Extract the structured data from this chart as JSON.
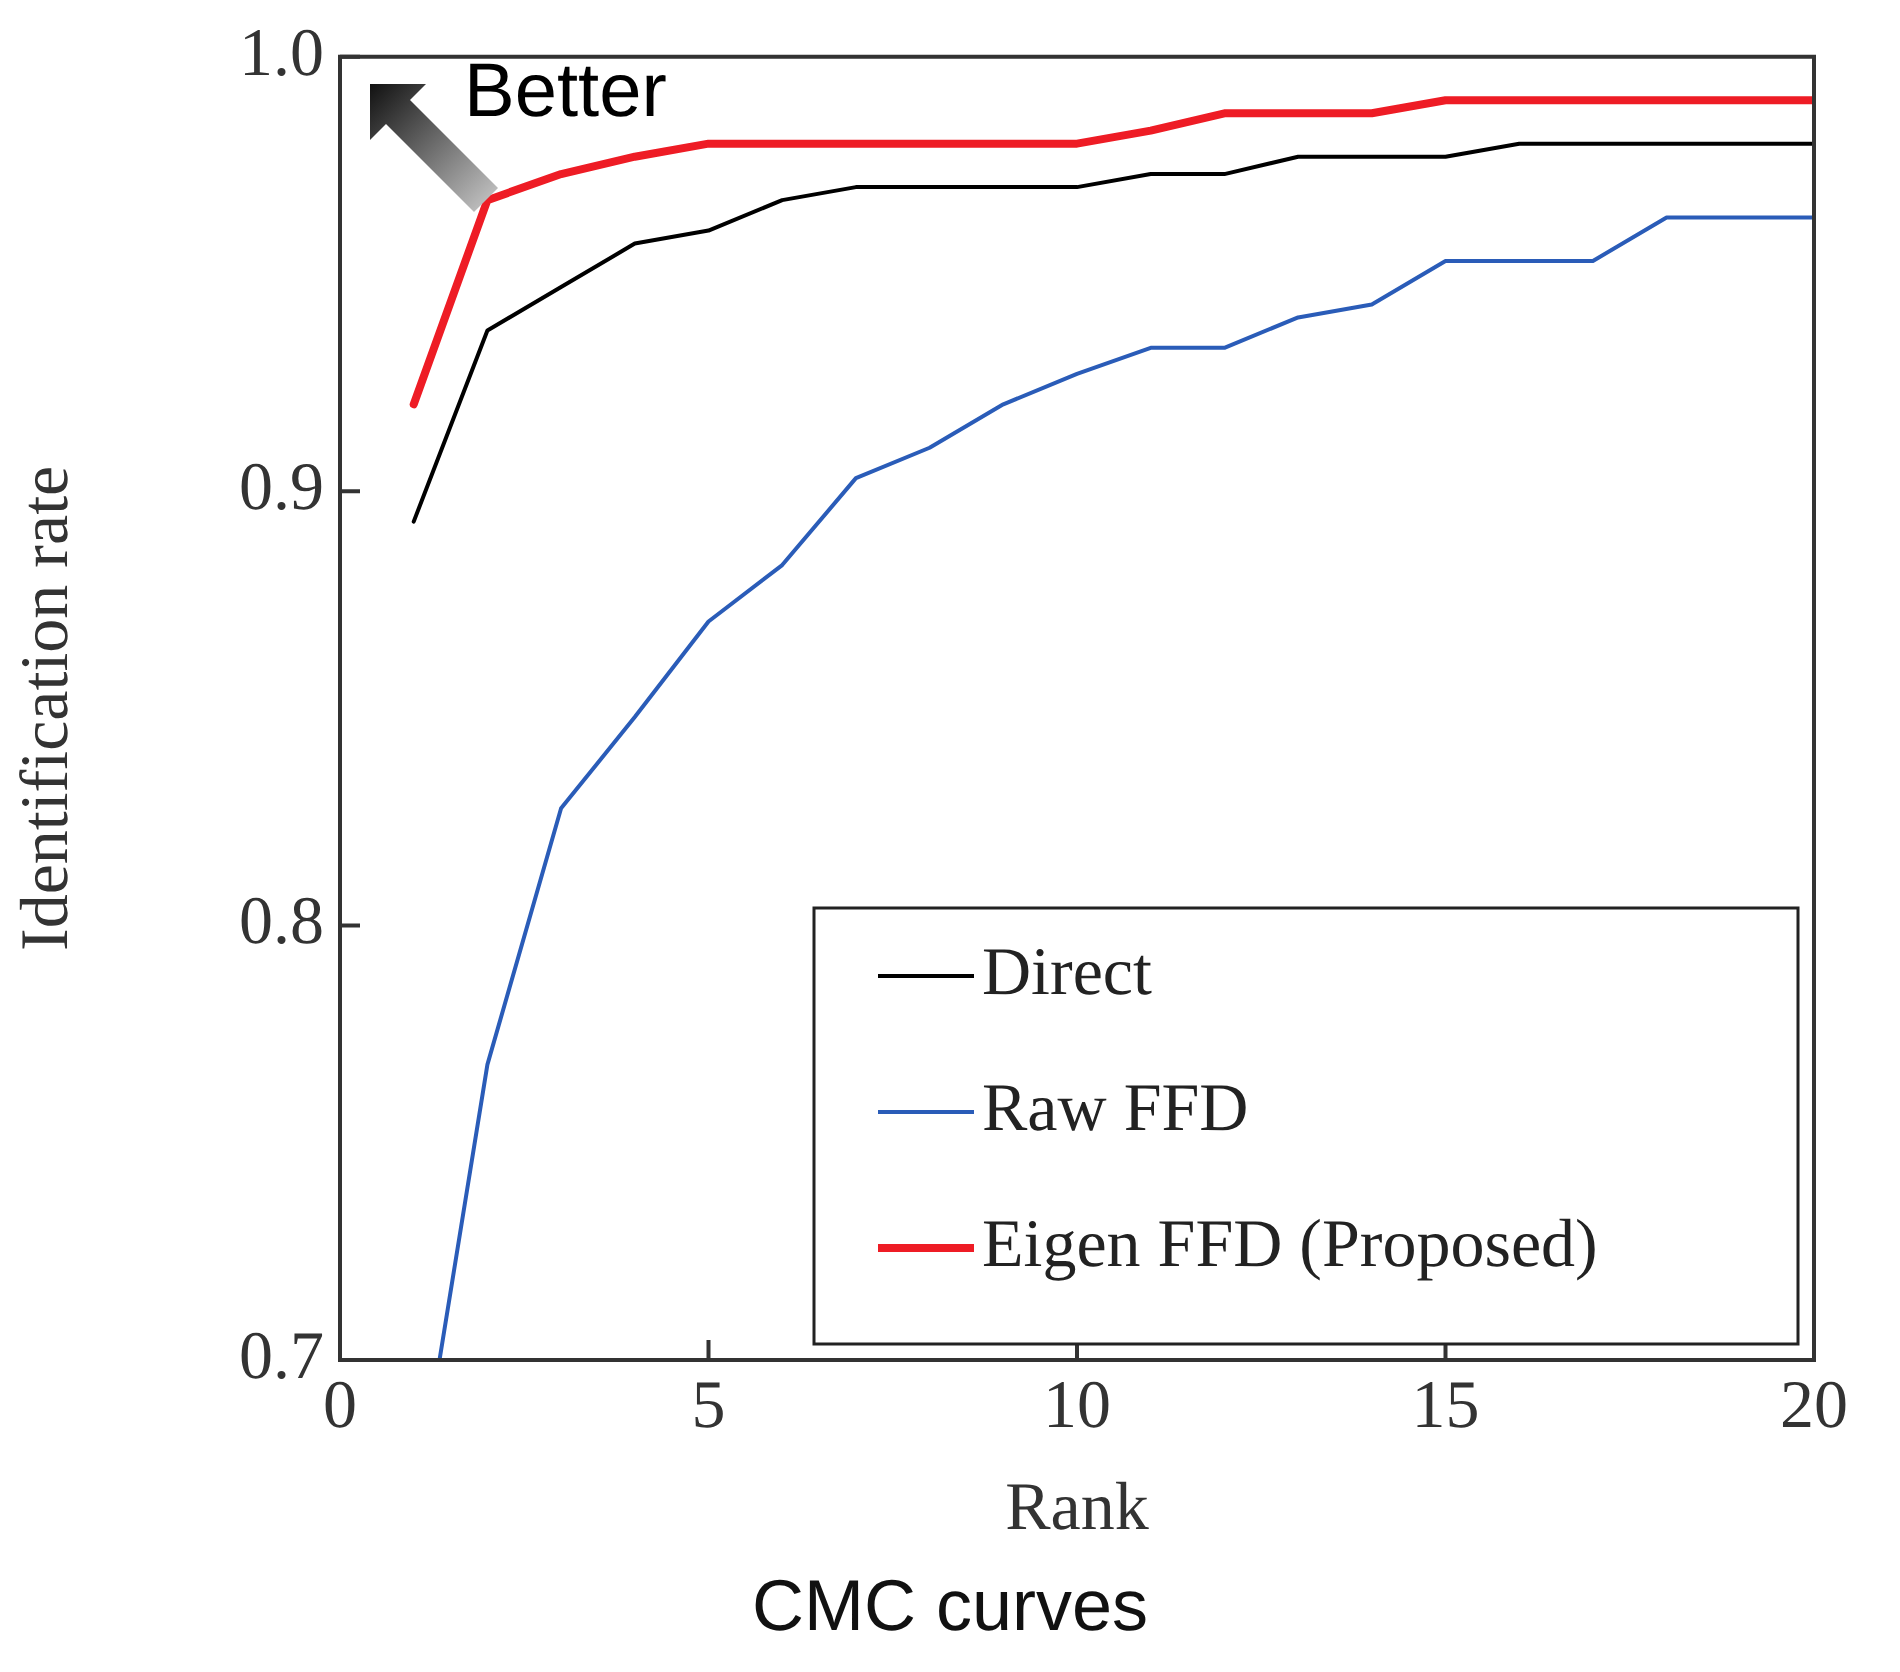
{
  "chart_data": {
    "type": "line",
    "title": "CMC curves",
    "xlabel": "Rank",
    "ylabel": "Identification rate",
    "annotations": [
      "Better"
    ],
    "xlim": [
      0,
      20
    ],
    "xticks": [
      0,
      5,
      10,
      15,
      20
    ],
    "ylim": [
      0.7,
      1.0
    ],
    "yticks": [
      0.7,
      0.8,
      0.9,
      {
        "value": 1.0,
        "label": "1.0"
      }
    ],
    "grid": false,
    "legend": "bottom right",
    "marker": "none",
    "line_style": "solid",
    "series": [
      {
        "name": "Direct",
        "color": "#000000",
        "x": [
          1,
          2,
          3,
          4,
          5,
          6,
          7,
          8,
          9,
          10,
          11,
          12,
          13,
          14,
          15,
          16,
          17,
          18,
          19,
          20
        ],
        "values": [
          0.893,
          0.937,
          0.947,
          0.957,
          0.96,
          0.967,
          0.97,
          0.97,
          0.97,
          0.97,
          0.973,
          0.973,
          0.977,
          0.977,
          0.977,
          0.98,
          0.98,
          0.98,
          0.98,
          0.98
        ]
      },
      {
        "name": "Raw FFD",
        "color": "#2a5cb8",
        "x": [
          1.35,
          2,
          3,
          4,
          5,
          6,
          7,
          8,
          9,
          10,
          11,
          12,
          13,
          14,
          15,
          16,
          17,
          18,
          19,
          20
        ],
        "values": [
          0.7,
          0.768,
          0.827,
          0.848,
          0.87,
          0.883,
          0.903,
          0.91,
          0.92,
          0.927,
          0.933,
          0.933,
          0.94,
          0.943,
          0.953,
          0.953,
          0.953,
          0.963,
          0.963,
          0.963
        ]
      },
      {
        "name": "Eigen FFD (Proposed)",
        "color": "#ee1c25",
        "x": [
          1,
          2,
          3,
          4,
          5,
          6,
          7,
          8,
          9,
          10,
          11,
          12,
          13,
          14,
          15,
          16,
          17,
          18,
          19,
          20
        ],
        "values": [
          0.92,
          0.967,
          0.973,
          0.977,
          0.98,
          0.98,
          0.98,
          0.98,
          0.98,
          0.98,
          0.983,
          0.987,
          0.987,
          0.987,
          0.99,
          0.99,
          0.99,
          0.99,
          0.99,
          0.99
        ]
      }
    ]
  }
}
